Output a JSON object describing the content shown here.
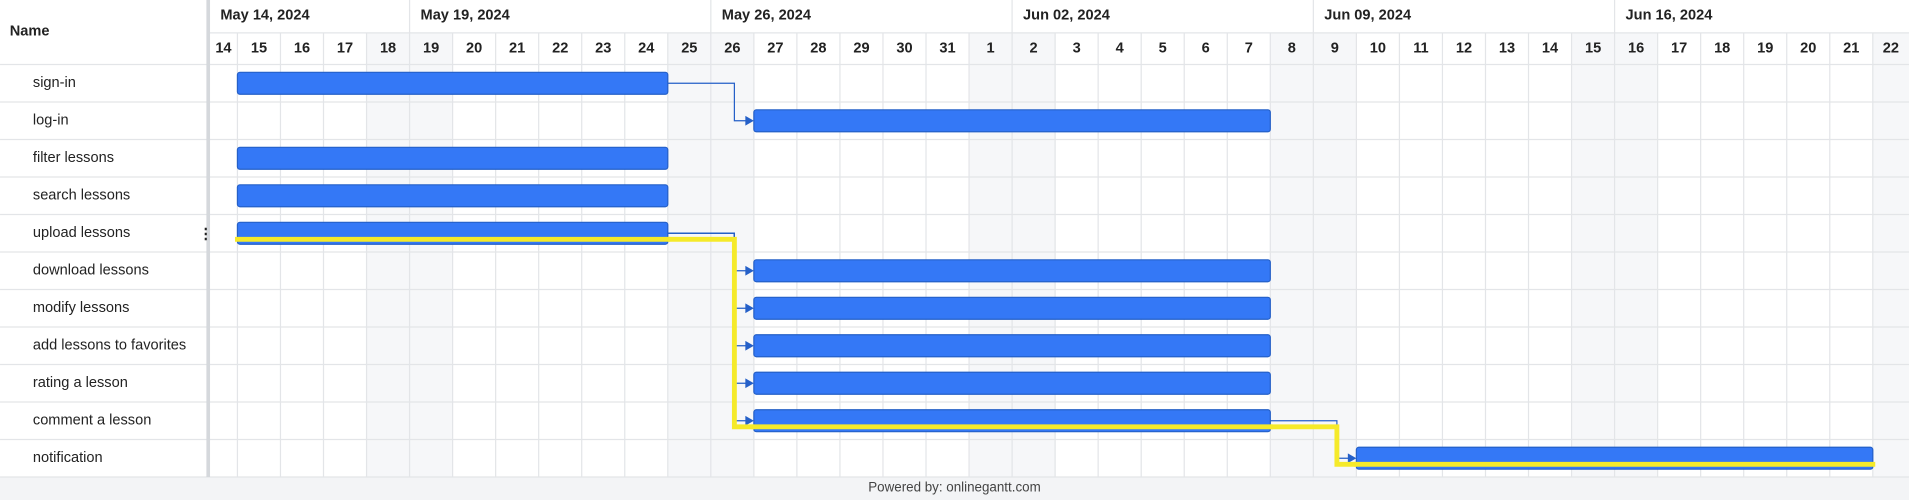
{
  "chart_data": {
    "type": "gantt",
    "name_header": "Name",
    "week_labels": [
      "May 14, 2024",
      null,
      null,
      null,
      null,
      "May 19, 2024",
      null,
      null,
      null,
      null,
      null,
      null,
      "May 26, 2024",
      null,
      null,
      null,
      null,
      null,
      null,
      "Jun 02, 2024",
      null,
      null,
      null,
      null,
      null,
      null,
      "Jun 09, 2024",
      null,
      null,
      null,
      null,
      null,
      null,
      "Jun 16, 2024",
      null,
      null,
      null,
      null,
      null,
      null
    ],
    "categories": [
      "14",
      "15",
      "16",
      "17",
      "18",
      "19",
      "20",
      "21",
      "22",
      "23",
      "24",
      "25",
      "26",
      "27",
      "28",
      "29",
      "30",
      "31",
      "1",
      "2",
      "3",
      "4",
      "5",
      "6",
      "7",
      "8",
      "9",
      "10",
      "11",
      "12",
      "13",
      "14",
      "15",
      "16",
      "17",
      "18",
      "19",
      "20",
      "21",
      "22"
    ],
    "tasks": [
      {
        "name": "sign-in",
        "start": 1,
        "end": 10
      },
      {
        "name": "log-in",
        "start": 13,
        "end": 24,
        "depends_on": 0
      },
      {
        "name": "filter lessons",
        "start": 1,
        "end": 10
      },
      {
        "name": "search lessons",
        "start": 1,
        "end": 10
      },
      {
        "name": "upload lessons",
        "start": 1,
        "end": 10,
        "critical": true
      },
      {
        "name": "download lessons",
        "start": 13,
        "end": 24,
        "depends_on": 4
      },
      {
        "name": "modify lessons",
        "start": 13,
        "end": 24,
        "depends_on": 4
      },
      {
        "name": "add lessons to favorites",
        "start": 13,
        "end": 24,
        "depends_on": 4
      },
      {
        "name": "rating a lesson",
        "start": 13,
        "end": 24,
        "depends_on": 4
      },
      {
        "name": "comment a lesson",
        "start": 13,
        "end": 24,
        "depends_on": 4,
        "critical": true
      },
      {
        "name": "notification",
        "start": 27,
        "end": 38,
        "depends_on": 9,
        "critical": true
      }
    ],
    "bar_color": "#3478f6",
    "critical_color": "#f5ea2a",
    "footer": "Powered by: onlinegantt.com"
  }
}
